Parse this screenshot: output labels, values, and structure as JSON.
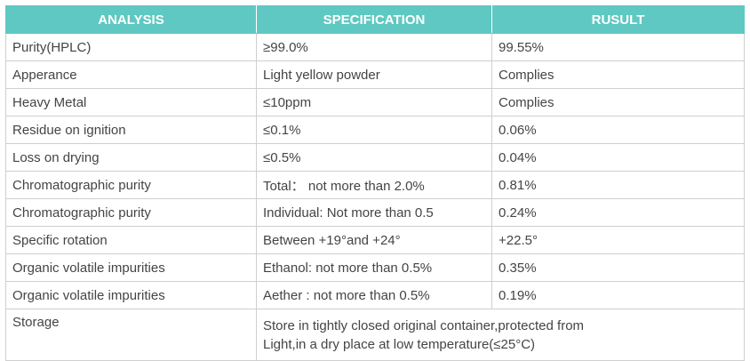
{
  "headers": {
    "analysis": "ANALYSIS",
    "specification": "SPECIFICATION",
    "result": "RUSULT"
  },
  "rows": [
    {
      "analysis": "Purity(HPLC)",
      "specification": "≥99.0%",
      "result": "99.55%"
    },
    {
      "analysis": "Apperance",
      "specification": "Light yellow powder",
      "result": "Complies"
    },
    {
      "analysis": "Heavy Metal",
      "specification": "≤10ppm",
      "result": "Complies"
    },
    {
      "analysis": "Residue on ignition",
      "specification": "≤0.1%",
      "result": "0.06%"
    },
    {
      "analysis": "Loss on drying",
      "specification": "≤0.5%",
      "result": "0.04%"
    },
    {
      "analysis": "Chromatographic purity",
      "specification": "Total： not more than 2.0%",
      "result": "0.81%"
    },
    {
      "analysis": "Chromatographic purity",
      "specification": "Individual: Not more than 0.5",
      "result": "0.24%"
    },
    {
      "analysis": "Specific rotation",
      "specification": "Between +19°and +24°",
      "result": "+22.5°"
    },
    {
      "analysis": "Organic volatile impurities",
      "specification": "Ethanol: not more than 0.5%",
      "result": "0.35%"
    },
    {
      "analysis": "Organic volatile impurities",
      "specification": "Aether : not more than 0.5%",
      "result": "0.19%"
    }
  ],
  "storage": {
    "analysis": "Storage",
    "specification_line1": "Store in tightly closed original container,protected from",
    "specification_line2": "Light,in a dry place at low temperature(≤25°C)"
  }
}
